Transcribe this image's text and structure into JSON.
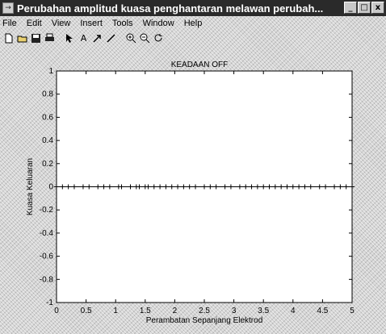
{
  "window": {
    "title": "Perubahan amplitud kuasa penghantaran melawan perubah...",
    "icon_glyph": "→",
    "buttons": {
      "minimize": "_",
      "maximize": "□",
      "close": "x"
    }
  },
  "menu": {
    "items": [
      {
        "label": "File"
      },
      {
        "label": "Edit"
      },
      {
        "label": "View"
      },
      {
        "label": "Insert"
      },
      {
        "label": "Tools"
      },
      {
        "label": "Window"
      },
      {
        "label": "Help"
      }
    ]
  },
  "toolbar": {
    "tools": [
      {
        "name": "new-figure-icon"
      },
      {
        "name": "open-file-icon"
      },
      {
        "name": "save-icon"
      },
      {
        "name": "print-icon"
      },
      {
        "name": "select-arrow-icon"
      },
      {
        "name": "text-icon",
        "glyph": "A"
      },
      {
        "name": "arrow-icon"
      },
      {
        "name": "line-icon"
      },
      {
        "name": "zoom-in-icon"
      },
      {
        "name": "zoom-out-icon"
      },
      {
        "name": "rotate-icon"
      }
    ]
  },
  "chart_data": {
    "type": "line",
    "title": "KEADAAN OFF",
    "xlabel": "Perambatan Sepanjang Elektrod",
    "ylabel": "Kuasa Keluaran",
    "xlim": [
      0,
      5
    ],
    "ylim": [
      -1,
      1
    ],
    "x_ticks": [
      "0",
      "0.5",
      "1",
      "1.5",
      "2",
      "2.5",
      "3",
      "3.5",
      "4",
      "4.5",
      "5"
    ],
    "y_ticks": [
      "-1",
      "-0.8",
      "-0.6",
      "-0.4",
      "-0.2",
      "0",
      "0.2",
      "0.4",
      "0.6",
      "0.8",
      "1"
    ],
    "grid": false,
    "series": [
      {
        "marker": "+",
        "color": "#000000",
        "x": [
          0,
          0.1,
          0.2,
          0.3,
          0.45,
          0.55,
          0.7,
          0.8,
          0.9,
          1.05,
          1.1,
          1.25,
          1.35,
          1.4,
          1.5,
          1.55,
          1.65,
          1.75,
          1.85,
          1.95,
          2.05,
          2.15,
          2.25,
          2.35,
          2.5,
          2.6,
          2.7,
          2.85,
          2.95,
          3.1,
          3.2,
          3.3,
          3.4,
          3.5,
          3.6,
          3.7,
          3.8,
          3.9,
          4.0,
          4.1,
          4.2,
          4.3,
          4.45,
          4.55,
          4.7,
          4.8,
          4.9,
          5.0
        ],
        "y": [
          0,
          0,
          0,
          0,
          0,
          0,
          0,
          0,
          0,
          0,
          0,
          0,
          0,
          0,
          0,
          0,
          0,
          0,
          0,
          0,
          0,
          0,
          0,
          0,
          0,
          0,
          0,
          0,
          0,
          0,
          0,
          0,
          0,
          0,
          0,
          0,
          0,
          0,
          0,
          0,
          0,
          0,
          0,
          0,
          0,
          0,
          0,
          0
        ]
      }
    ]
  }
}
